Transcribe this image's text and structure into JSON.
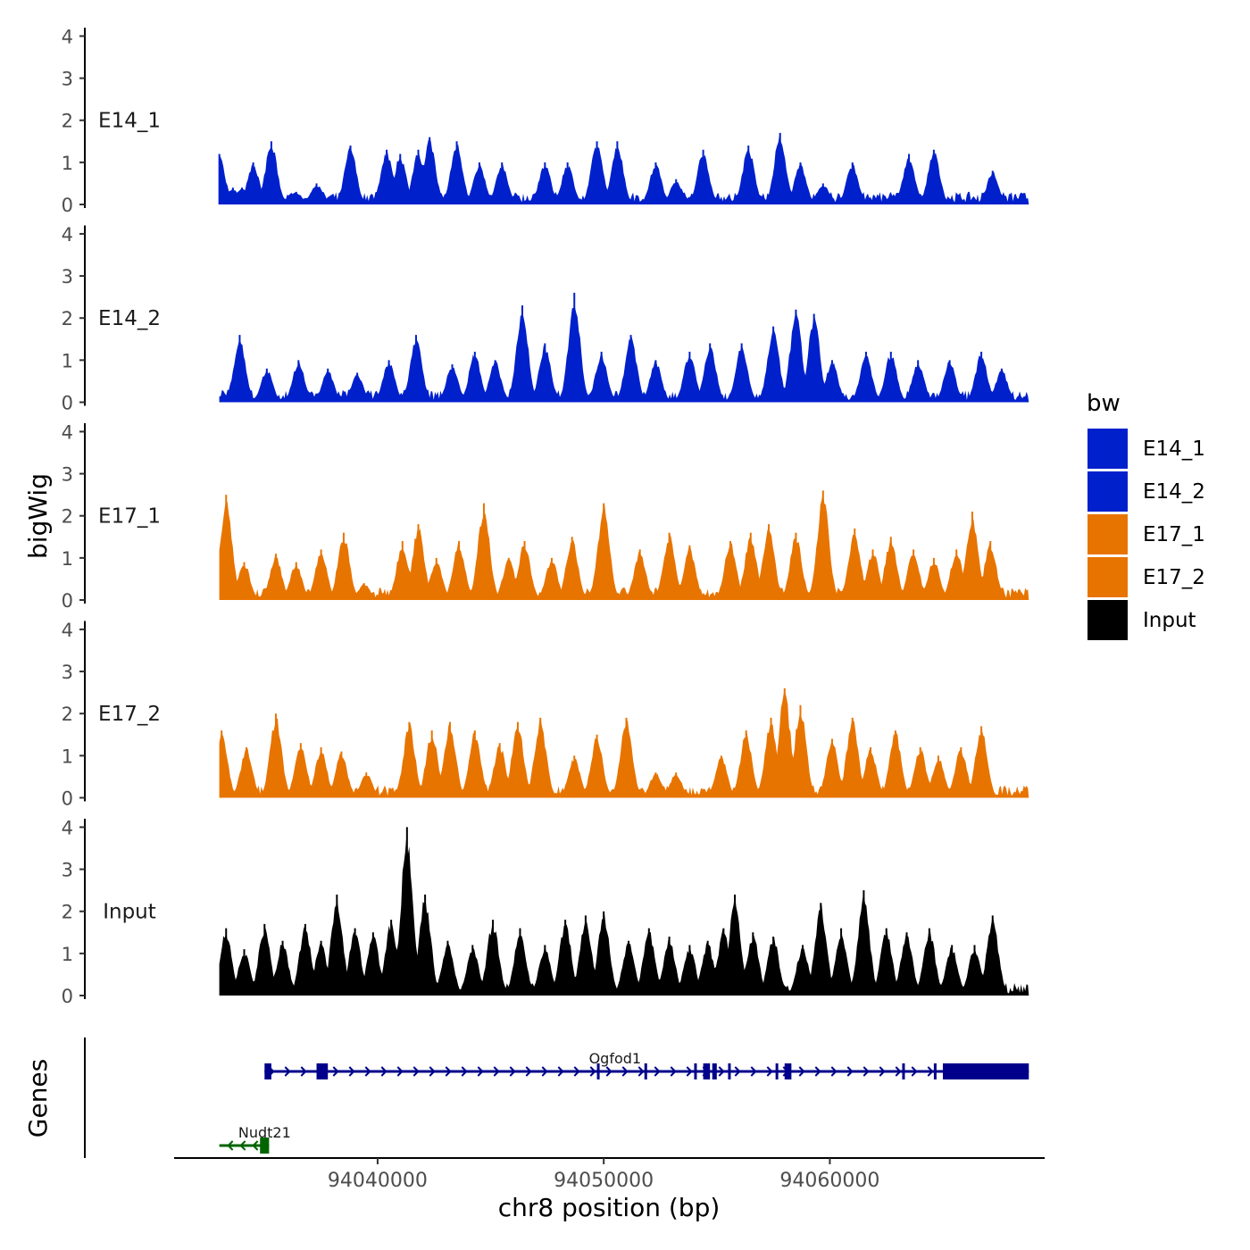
{
  "chart_data": {
    "type": "area",
    "title": "",
    "xlabel": "chr8 position (bp)",
    "ylabel": "bigWig",
    "genes_label": "Genes",
    "x_range": [
      94033000,
      94068800
    ],
    "xlim": [
      94031000,
      94069500
    ],
    "x_ticks": [
      94040000,
      94050000,
      94060000
    ],
    "x_tick_labels": [
      "94040000",
      "94050000",
      "94060000"
    ],
    "ylim": [
      0,
      4.2
    ],
    "y_ticks": [
      0,
      1,
      2,
      3,
      4
    ],
    "y_tick_labels": [
      "0",
      "1",
      "2",
      "3",
      "4"
    ],
    "legend": {
      "title": "bw",
      "position": "right",
      "entries": [
        {
          "label": "E14_1",
          "color": "#0020CC"
        },
        {
          "label": "E14_2",
          "color": "#0020CC"
        },
        {
          "label": "E17_1",
          "color": "#E87400"
        },
        {
          "label": "E17_2",
          "color": "#E87400"
        },
        {
          "label": "Input",
          "color": "#000000"
        }
      ]
    },
    "series": [
      {
        "name": "E14_1",
        "color": "#0020CC",
        "peaks": [
          [
            94033000,
            1.2
          ],
          [
            94033600,
            0.4
          ],
          [
            94034000,
            0.4
          ],
          [
            94034500,
            1.0
          ],
          [
            94034900,
            0.4
          ],
          [
            94035300,
            1.5
          ],
          [
            94036400,
            0.3
          ],
          [
            94037300,
            0.5
          ],
          [
            94038800,
            1.4
          ],
          [
            94040400,
            1.3
          ],
          [
            94041000,
            1.2
          ],
          [
            94041800,
            1.3
          ],
          [
            94042300,
            1.6
          ],
          [
            94043500,
            1.5
          ],
          [
            94044500,
            1.0
          ],
          [
            94045500,
            1.0
          ],
          [
            94047400,
            1.0
          ],
          [
            94048400,
            1.0
          ],
          [
            94049700,
            1.5
          ],
          [
            94050600,
            1.5
          ],
          [
            94052300,
            1.0
          ],
          [
            94053200,
            0.6
          ],
          [
            94054400,
            1.3
          ],
          [
            94056400,
            1.4
          ],
          [
            94057800,
            1.7
          ],
          [
            94058700,
            1.0
          ],
          [
            94059700,
            0.5
          ],
          [
            94061000,
            1.0
          ],
          [
            94063500,
            1.2
          ],
          [
            94064600,
            1.3
          ],
          [
            94067200,
            0.8
          ]
        ]
      },
      {
        "name": "E14_2",
        "color": "#0020CC",
        "peaks": [
          [
            94033200,
            0.2
          ],
          [
            94033900,
            1.6
          ],
          [
            94035100,
            0.8
          ],
          [
            94036500,
            1.0
          ],
          [
            94037800,
            0.8
          ],
          [
            94039100,
            0.7
          ],
          [
            94040500,
            1.0
          ],
          [
            94041700,
            1.6
          ],
          [
            94043300,
            0.9
          ],
          [
            94044300,
            1.2
          ],
          [
            94045200,
            1.0
          ],
          [
            94046400,
            2.3
          ],
          [
            94047400,
            1.4
          ],
          [
            94048700,
            2.6
          ],
          [
            94049900,
            1.2
          ],
          [
            94051200,
            1.6
          ],
          [
            94052300,
            1.0
          ],
          [
            94053800,
            1.2
          ],
          [
            94054700,
            1.4
          ],
          [
            94056100,
            1.4
          ],
          [
            94057500,
            1.8
          ],
          [
            94058500,
            2.2
          ],
          [
            94059300,
            2.1
          ],
          [
            94060100,
            1.0
          ],
          [
            94061600,
            1.2
          ],
          [
            94062700,
            1.2
          ],
          [
            94063900,
            1.0
          ],
          [
            94065300,
            1.0
          ],
          [
            94066700,
            1.2
          ],
          [
            94067600,
            0.8
          ]
        ]
      },
      {
        "name": "E17_1",
        "color": "#E87400",
        "peaks": [
          [
            94033300,
            2.5
          ],
          [
            94034100,
            0.9
          ],
          [
            94035500,
            1.1
          ],
          [
            94036400,
            0.9
          ],
          [
            94037500,
            1.2
          ],
          [
            94038500,
            1.6
          ],
          [
            94039400,
            0.4
          ],
          [
            94041100,
            1.4
          ],
          [
            94041800,
            1.8
          ],
          [
            94042600,
            1.0
          ],
          [
            94043600,
            1.4
          ],
          [
            94044700,
            2.3
          ],
          [
            94045800,
            1.0
          ],
          [
            94046500,
            1.4
          ],
          [
            94047700,
            1.0
          ],
          [
            94048600,
            1.5
          ],
          [
            94050000,
            2.3
          ],
          [
            94051600,
            1.2
          ],
          [
            94052900,
            1.6
          ],
          [
            94053800,
            1.3
          ],
          [
            94055600,
            1.4
          ],
          [
            94056500,
            1.6
          ],
          [
            94057300,
            1.8
          ],
          [
            94058500,
            1.6
          ],
          [
            94059700,
            2.6
          ],
          [
            94061100,
            1.7
          ],
          [
            94061900,
            1.2
          ],
          [
            94062700,
            1.5
          ],
          [
            94063700,
            1.2
          ],
          [
            94064600,
            1.0
          ],
          [
            94065600,
            1.2
          ],
          [
            94066300,
            2.1
          ],
          [
            94067100,
            1.4
          ]
        ]
      },
      {
        "name": "E17_2",
        "color": "#E87400",
        "peaks": [
          [
            94033100,
            1.6
          ],
          [
            94034200,
            1.2
          ],
          [
            94035500,
            2.0
          ],
          [
            94036600,
            1.3
          ],
          [
            94037500,
            1.2
          ],
          [
            94038400,
            1.1
          ],
          [
            94039500,
            0.6
          ],
          [
            94041400,
            1.8
          ],
          [
            94042400,
            1.6
          ],
          [
            94043200,
            1.8
          ],
          [
            94044300,
            1.6
          ],
          [
            94045400,
            1.3
          ],
          [
            94046200,
            1.8
          ],
          [
            94047200,
            1.9
          ],
          [
            94048700,
            1.0
          ],
          [
            94049700,
            1.5
          ],
          [
            94051000,
            1.9
          ],
          [
            94052300,
            0.6
          ],
          [
            94053200,
            0.6
          ],
          [
            94055200,
            1.0
          ],
          [
            94056300,
            1.6
          ],
          [
            94057400,
            1.9
          ],
          [
            94058000,
            2.6
          ],
          [
            94058700,
            2.2
          ],
          [
            94060100,
            1.4
          ],
          [
            94061000,
            1.9
          ],
          [
            94061800,
            1.2
          ],
          [
            94062900,
            1.6
          ],
          [
            94064000,
            1.2
          ],
          [
            94064800,
            1.0
          ],
          [
            94065800,
            1.2
          ],
          [
            94066700,
            1.7
          ]
        ]
      },
      {
        "name": "Input",
        "color": "#000000",
        "peaks": [
          [
            94033300,
            1.6
          ],
          [
            94034100,
            1.1
          ],
          [
            94035000,
            1.7
          ],
          [
            94035800,
            1.3
          ],
          [
            94036800,
            1.7
          ],
          [
            94037500,
            1.3
          ],
          [
            94038200,
            2.4
          ],
          [
            94039000,
            1.6
          ],
          [
            94039800,
            1.5
          ],
          [
            94040600,
            1.8
          ],
          [
            94041300,
            4.0
          ],
          [
            94042100,
            2.4
          ],
          [
            94043100,
            1.3
          ],
          [
            94044200,
            1.2
          ],
          [
            94045100,
            1.8
          ],
          [
            94046300,
            1.6
          ],
          [
            94047400,
            1.2
          ],
          [
            94048300,
            1.8
          ],
          [
            94049200,
            1.9
          ],
          [
            94050000,
            2.0
          ],
          [
            94051100,
            1.3
          ],
          [
            94052000,
            1.6
          ],
          [
            94052900,
            1.4
          ],
          [
            94053800,
            1.2
          ],
          [
            94054600,
            1.3
          ],
          [
            94055300,
            1.6
          ],
          [
            94055800,
            2.4
          ],
          [
            94056600,
            1.5
          ],
          [
            94057500,
            1.4
          ],
          [
            94058800,
            1.2
          ],
          [
            94059600,
            2.2
          ],
          [
            94060500,
            1.6
          ],
          [
            94061500,
            2.5
          ],
          [
            94062500,
            1.6
          ],
          [
            94063400,
            1.5
          ],
          [
            94064400,
            1.6
          ],
          [
            94065400,
            1.2
          ],
          [
            94066400,
            1.2
          ],
          [
            94067200,
            1.9
          ]
        ]
      }
    ],
    "genes": [
      {
        "name": "Ogfod1",
        "color": "#00008B",
        "strand": "+",
        "start": 94035000,
        "end": 94068800,
        "exons": [
          [
            94035000,
            94035300
          ],
          [
            94037300,
            94037800
          ],
          [
            94049700,
            94049800
          ],
          [
            94051800,
            94051900
          ],
          [
            94054000,
            94054100
          ],
          [
            94054400,
            94054700
          ],
          [
            94054800,
            94055000
          ],
          [
            94055500,
            94055600
          ],
          [
            94057600,
            94057700
          ],
          [
            94058000,
            94058300
          ],
          [
            94063200,
            94063300
          ],
          [
            94064600,
            94064700
          ],
          [
            94065000,
            94068800
          ]
        ]
      },
      {
        "name": "Nudt21",
        "color": "#006400",
        "strand": "-",
        "start": 94033000,
        "end": 94035200,
        "exons": [
          [
            94034800,
            94035200
          ]
        ]
      }
    ]
  }
}
